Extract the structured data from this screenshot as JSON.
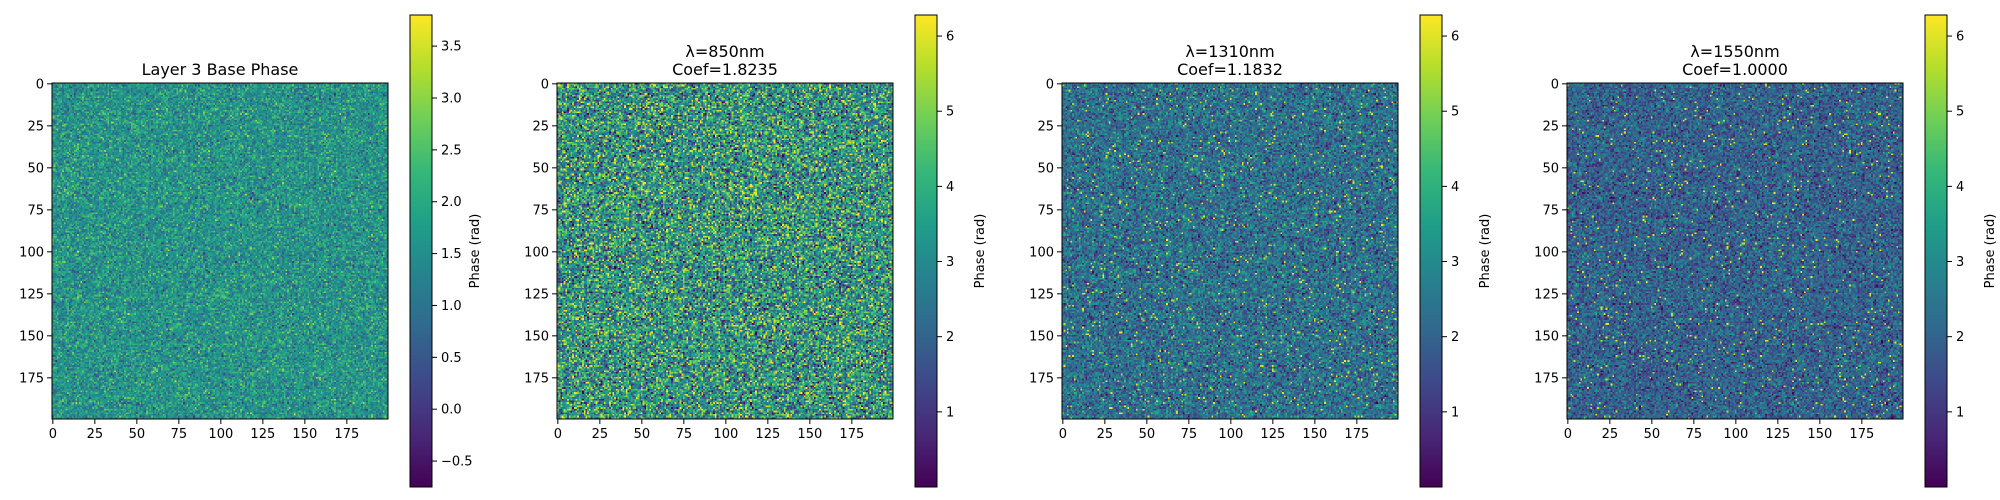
{
  "colormap": "viridis",
  "colormap_stops": [
    "#440154",
    "#482878",
    "#3e4989",
    "#31688e",
    "#26828e",
    "#1f9e89",
    "#35b779",
    "#6ece58",
    "#b5de2b",
    "#fde725"
  ],
  "chart_data": [
    {
      "type": "heatmap",
      "title_lines": [
        "Layer 3 Base Phase"
      ],
      "grid_size": [
        200,
        200
      ],
      "x_ticks": [
        0,
        25,
        50,
        75,
        100,
        125,
        150,
        175
      ],
      "y_ticks": [
        0,
        25,
        50,
        75,
        100,
        125,
        150,
        175
      ],
      "xlim": [
        0,
        199
      ],
      "ylim": [
        0,
        199
      ],
      "y_inverted": true,
      "colorbar": {
        "label": "Phase (rad)",
        "range": [
          -0.75,
          3.8
        ],
        "ticks": [
          -0.5,
          0.0,
          0.5,
          1.0,
          1.5,
          2.0,
          2.5,
          3.0,
          3.5
        ],
        "tick_labels": [
          "−0.5",
          "0.0",
          "0.5",
          "1.0",
          "1.5",
          "2.0",
          "2.5",
          "3.0",
          "3.5"
        ]
      },
      "value_distribution": {
        "mean": 1.6,
        "spread": 0.55,
        "hotspot_fraction": 0.0
      }
    },
    {
      "type": "heatmap",
      "title_lines": [
        "λ=850nm",
        "Coef=1.8235"
      ],
      "grid_size": [
        200,
        200
      ],
      "x_ticks": [
        0,
        25,
        50,
        75,
        100,
        125,
        150,
        175
      ],
      "y_ticks": [
        0,
        25,
        50,
        75,
        100,
        125,
        150,
        175
      ],
      "xlim": [
        0,
        199
      ],
      "ylim": [
        0,
        199
      ],
      "y_inverted": true,
      "colorbar": {
        "label": "Phase (rad)",
        "range": [
          0.0,
          6.28
        ],
        "ticks": [
          1,
          2,
          3,
          4,
          5,
          6
        ],
        "tick_labels": [
          "1",
          "2",
          "3",
          "4",
          "5",
          "6"
        ]
      },
      "value_distribution": {
        "mean": 3.3,
        "spread": 1.5,
        "hotspot_fraction": 0.0
      }
    },
    {
      "type": "heatmap",
      "title_lines": [
        "λ=1310nm",
        "Coef=1.1832"
      ],
      "grid_size": [
        200,
        200
      ],
      "x_ticks": [
        0,
        25,
        50,
        75,
        100,
        125,
        150,
        175
      ],
      "y_ticks": [
        0,
        25,
        50,
        75,
        100,
        125,
        150,
        175
      ],
      "xlim": [
        0,
        199
      ],
      "ylim": [
        0,
        199
      ],
      "y_inverted": true,
      "colorbar": {
        "label": "Phase (rad)",
        "range": [
          0.0,
          6.28
        ],
        "ticks": [
          1,
          2,
          3,
          4,
          5,
          6
        ],
        "tick_labels": [
          "1",
          "2",
          "3",
          "4",
          "5",
          "6"
        ]
      },
      "value_distribution": {
        "mean": 2.3,
        "spread": 0.85,
        "hotspot_fraction": 0.02
      }
    },
    {
      "type": "heatmap",
      "title_lines": [
        "λ=1550nm",
        "Coef=1.0000"
      ],
      "grid_size": [
        200,
        200
      ],
      "x_ticks": [
        0,
        25,
        50,
        75,
        100,
        125,
        150,
        175
      ],
      "y_ticks": [
        0,
        25,
        50,
        75,
        100,
        125,
        150,
        175
      ],
      "xlim": [
        0,
        199
      ],
      "ylim": [
        0,
        199
      ],
      "y_inverted": true,
      "colorbar": {
        "label": "Phase (rad)",
        "range": [
          0.0,
          6.28
        ],
        "ticks": [
          1,
          2,
          3,
          4,
          5,
          6
        ],
        "tick_labels": [
          "1",
          "2",
          "3",
          "4",
          "5",
          "6"
        ]
      },
      "value_distribution": {
        "mean": 1.95,
        "spread": 0.75,
        "hotspot_fraction": 0.02
      }
    }
  ]
}
